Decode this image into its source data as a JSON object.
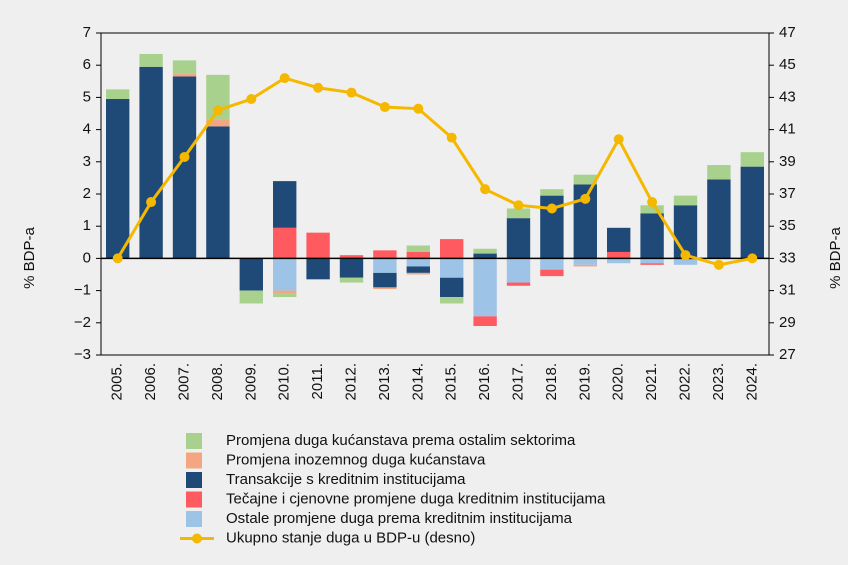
{
  "chart_data": {
    "type": "bar",
    "y_label": "% BDP-a",
    "y2_label": "% BDP-a",
    "categories": [
      "2005.",
      "2006.",
      "2007.",
      "2008.",
      "2009.",
      "2010.",
      "2011.",
      "2012.",
      "2013.",
      "2014.",
      "2015.",
      "2016.",
      "2017.",
      "2018.",
      "2019.",
      "2020.",
      "2021.",
      "2022.",
      "2023.",
      "2024."
    ],
    "ylim": [
      -3,
      7
    ],
    "yticks": [
      {
        "value": -3,
        "label": "−3"
      },
      {
        "value": -2,
        "label": "−2"
      },
      {
        "value": -1,
        "label": "−1"
      },
      0,
      1,
      2,
      3,
      4,
      5,
      6,
      7
    ],
    "y2lim": [
      27,
      47
    ],
    "y2ticks": [
      27,
      29,
      31,
      33,
      35,
      37,
      39,
      41,
      43,
      45,
      47
    ],
    "series": [
      {
        "name": "Promjena duga kućanstava prema ostalim sektorima",
        "color": "#a9d18e",
        "values": [
          0.3,
          0.4,
          0.4,
          1.4,
          -0.4,
          -0.1,
          0,
          -0.15,
          0,
          0.2,
          -0.2,
          0.15,
          0.3,
          0.2,
          0.3,
          0,
          0.25,
          0.3,
          0.45,
          0.45
        ]
      },
      {
        "name": "Promjena inozemnog duga kućanstava",
        "color": "#f4a582",
        "values": [
          0,
          0,
          0.1,
          0.2,
          0,
          -0.1,
          0,
          0,
          -0.05,
          -0.05,
          0,
          0,
          0,
          0,
          -0.05,
          0,
          0,
          0,
          0,
          0
        ]
      },
      {
        "name": "Transakcije s kreditnim institucijama",
        "color": "#1f4a78",
        "values": [
          4.95,
          5.95,
          5.65,
          4.1,
          -1.0,
          1.45,
          -0.65,
          -0.6,
          -0.45,
          -0.2,
          -0.6,
          0.15,
          1.25,
          1.95,
          2.3,
          0.75,
          1.4,
          1.65,
          2.45,
          2.85
        ]
      },
      {
        "name": "Tečajne i cjenovne promjene duga kreditnim institucijama",
        "color": "#ff5a5f",
        "values": [
          0,
          0,
          0,
          0,
          0,
          0.95,
          0.8,
          0.1,
          0.25,
          0.2,
          0.6,
          -0.3,
          -0.1,
          -0.2,
          0,
          0.2,
          -0.05,
          0,
          0,
          0
        ]
      },
      {
        "name": "Ostale promjene duga prema kreditnim institucijama",
        "color": "#9dc3e6",
        "values": [
          0,
          0,
          0,
          0,
          0,
          -1.0,
          0,
          0,
          -0.45,
          -0.25,
          -0.6,
          -1.8,
          -0.75,
          -0.35,
          -0.2,
          -0.15,
          -0.15,
          -0.2,
          0,
          0
        ]
      },
      {
        "name": "Ukupno stanje duga u BDP-u (desno)",
        "color": "#f5b800",
        "axis": "y2",
        "values": [
          33.0,
          36.5,
          39.3,
          42.2,
          42.9,
          44.2,
          43.6,
          43.3,
          42.4,
          42.3,
          40.5,
          37.3,
          36.3,
          36.1,
          36.7,
          40.4,
          36.5,
          33.2,
          32.6,
          33.0
        ]
      }
    ]
  }
}
